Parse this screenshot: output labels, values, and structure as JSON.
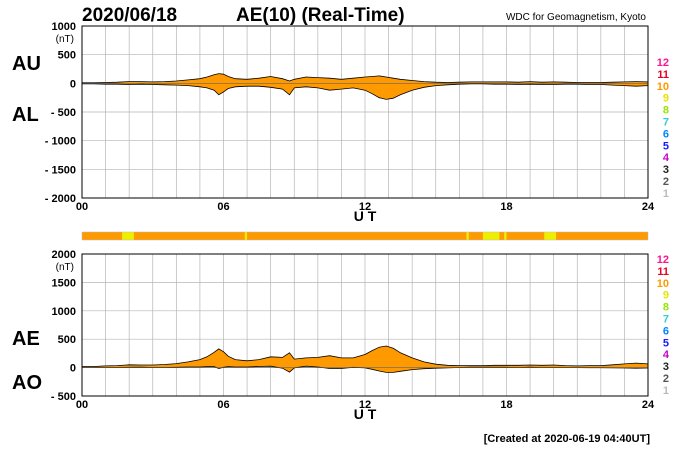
{
  "header": {
    "date": "2020/06/18",
    "title": "AE(10) (Real-Time)",
    "source": "WDC for Geomagnetism, Kyoto"
  },
  "footer": {
    "created": "[Created at 2020-06-19 04:40UT]"
  },
  "station_scale": {
    "labels": [
      "12",
      "11",
      "10",
      "9",
      "8",
      "7",
      "6",
      "5",
      "4",
      "3",
      "2",
      "1"
    ],
    "colors": [
      "#ff1493",
      "#e8002a",
      "#ff9900",
      "#e6e600",
      "#99e600",
      "#33cccc",
      "#0088ff",
      "#1a1aff",
      "#cc00cc",
      "#222222",
      "#555555",
      "#bbbbbb"
    ]
  },
  "station_count_bar": {
    "base_color": "#ff9900",
    "highlight_color": "#eeee00",
    "highlight_segments_hours": [
      [
        1.7,
        2.2
      ],
      [
        6.9,
        7.0
      ],
      [
        16.3,
        16.4
      ],
      [
        17.0,
        17.7
      ],
      [
        17.9,
        18.0
      ],
      [
        19.6,
        20.1
      ]
    ]
  },
  "chart_data": [
    {
      "type": "area",
      "panel": "AU-AL",
      "labels": {
        "upper": "AU",
        "lower": "AL"
      },
      "unit": "(nT)",
      "ylim": [
        -2000,
        1000
      ],
      "yticks": [
        "1000",
        "500",
        "0",
        "- 500",
        "- 1000",
        "- 1500",
        "- 2000"
      ],
      "xlim": [
        0,
        24
      ],
      "xticks": [
        "00",
        "06",
        "12",
        "18",
        "24"
      ],
      "xlabel": "U T",
      "grid": true,
      "fill_color": "#ff9900",
      "x": [
        0,
        0.5,
        1,
        1.5,
        2,
        2.5,
        3,
        3.5,
        4,
        4.5,
        5,
        5.3,
        5.6,
        5.8,
        6.0,
        6.2,
        6.5,
        7,
        7.5,
        8,
        8.5,
        8.8,
        9,
        9.5,
        10,
        10.5,
        11,
        11.5,
        12,
        12.3,
        12.6,
        12.9,
        13.2,
        13.5,
        14,
        14.5,
        15,
        15.5,
        16,
        16.5,
        17,
        17.5,
        18,
        18.5,
        19,
        19.5,
        20,
        20.5,
        21,
        21.5,
        22,
        22.5,
        23,
        23.5,
        24
      ],
      "au": [
        10,
        10,
        15,
        20,
        30,
        30,
        25,
        30,
        40,
        60,
        80,
        110,
        150,
        170,
        160,
        120,
        80,
        70,
        90,
        120,
        80,
        40,
        70,
        110,
        100,
        90,
        70,
        90,
        110,
        120,
        130,
        110,
        90,
        70,
        50,
        30,
        20,
        15,
        20,
        25,
        25,
        25,
        25,
        20,
        30,
        20,
        25,
        20,
        15,
        15,
        15,
        20,
        25,
        30,
        25
      ],
      "al": [
        -10,
        -10,
        -15,
        -15,
        -20,
        -15,
        -20,
        -25,
        -30,
        -40,
        -60,
        -80,
        -120,
        -200,
        -150,
        -90,
        -60,
        -50,
        -50,
        -70,
        -100,
        -200,
        -80,
        -60,
        -80,
        -120,
        -100,
        -80,
        -120,
        -180,
        -250,
        -280,
        -260,
        -200,
        -120,
        -70,
        -40,
        -25,
        -15,
        -10,
        -10,
        -15,
        -15,
        -20,
        -15,
        -20,
        -20,
        -15,
        -15,
        -20,
        -20,
        -30,
        -40,
        -50,
        -40
      ]
    },
    {
      "type": "area",
      "panel": "AE-AO",
      "labels": {
        "upper": "AE",
        "lower": "AO"
      },
      "unit": "(nT)",
      "ylim": [
        -500,
        2000
      ],
      "yticks": [
        "2000",
        "1500",
        "1000",
        "500",
        "0",
        "- 500"
      ],
      "xlim": [
        0,
        24
      ],
      "xticks": [
        "00",
        "06",
        "12",
        "18",
        "24"
      ],
      "xlabel": "U T",
      "grid": true,
      "fill_color": "#ff9900",
      "x": [
        0,
        0.5,
        1,
        1.5,
        2,
        2.5,
        3,
        3.5,
        4,
        4.5,
        5,
        5.3,
        5.6,
        5.8,
        6.0,
        6.2,
        6.5,
        7,
        7.5,
        8,
        8.5,
        8.8,
        9,
        9.5,
        10,
        10.5,
        11,
        11.5,
        12,
        12.3,
        12.6,
        12.9,
        13.2,
        13.5,
        14,
        14.5,
        15,
        15.5,
        16,
        16.5,
        17,
        17.5,
        18,
        18.5,
        19,
        19.5,
        20,
        20.5,
        21,
        21.5,
        22,
        22.5,
        23,
        23.5,
        24
      ],
      "ae": [
        20,
        20,
        30,
        35,
        50,
        45,
        45,
        55,
        70,
        100,
        140,
        190,
        270,
        330,
        280,
        200,
        140,
        120,
        140,
        190,
        180,
        260,
        150,
        170,
        180,
        210,
        170,
        170,
        230,
        300,
        360,
        380,
        340,
        260,
        170,
        100,
        60,
        40,
        35,
        35,
        35,
        40,
        40,
        40,
        45,
        40,
        45,
        35,
        30,
        35,
        35,
        50,
        65,
        80,
        65
      ],
      "ao": [
        0,
        0,
        0,
        2,
        5,
        7,
        2,
        2,
        5,
        10,
        10,
        15,
        15,
        -15,
        5,
        15,
        10,
        10,
        20,
        25,
        -10,
        -80,
        -5,
        25,
        10,
        -15,
        -15,
        5,
        -5,
        -30,
        -60,
        -85,
        -85,
        -65,
        -35,
        -20,
        -10,
        -5,
        2,
        7,
        7,
        5,
        5,
        0,
        7,
        0,
        2,
        2,
        0,
        -2,
        -2,
        -5,
        -7,
        -10,
        -7
      ]
    }
  ]
}
